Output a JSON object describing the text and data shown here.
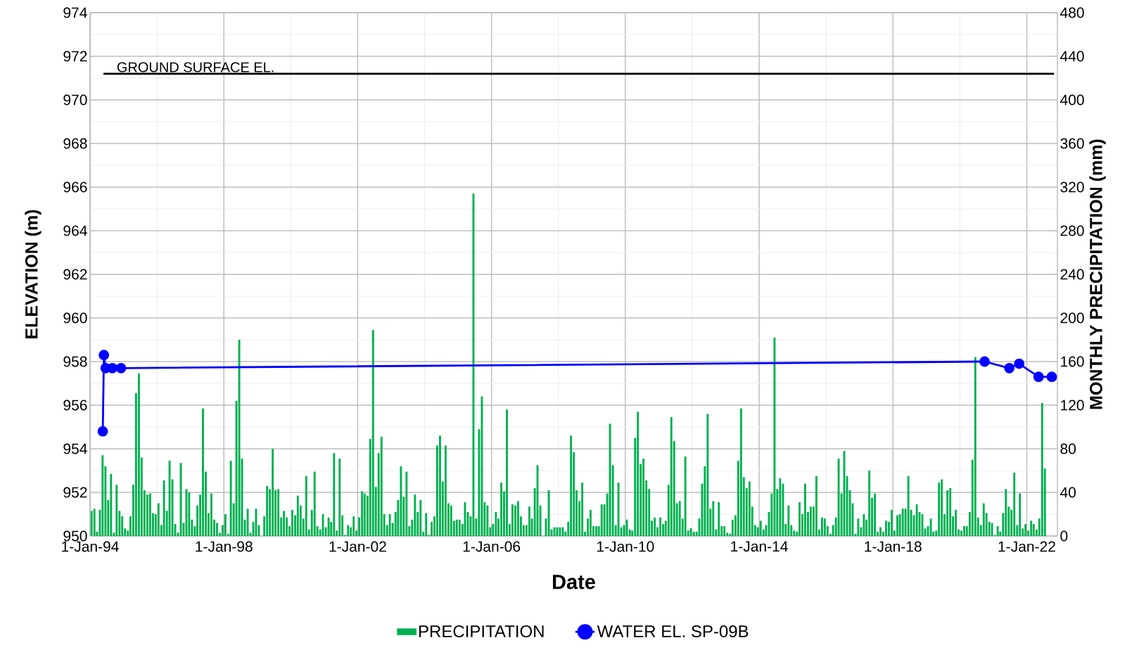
{
  "chart_data": {
    "type": "line",
    "xlabel": "Date",
    "ylabel": "ELEVATION (m)",
    "y2label": "MONTHLY PRECIPITATION (mm)",
    "xlim": [
      "1994-01-01",
      "2022-12-01"
    ],
    "ylim": [
      950,
      974
    ],
    "y2lim": [
      0,
      480
    ],
    "xticks": [
      {
        "value": "1994-01-01",
        "label": "1-Jan-94"
      },
      {
        "value": "1998-01-01",
        "label": "1-Jan-98"
      },
      {
        "value": "2002-01-01",
        "label": "1-Jan-02"
      },
      {
        "value": "2006-01-01",
        "label": "1-Jan-06"
      },
      {
        "value": "2010-01-01",
        "label": "1-Jan-10"
      },
      {
        "value": "2014-01-01",
        "label": "1-Jan-14"
      },
      {
        "value": "2018-01-01",
        "label": "1-Jan-18"
      },
      {
        "value": "2022-01-01",
        "label": "1-Jan-22"
      }
    ],
    "yticks": [
      950,
      952,
      954,
      956,
      958,
      960,
      962,
      964,
      966,
      968,
      970,
      972,
      974
    ],
    "y2ticks": [
      0,
      40,
      80,
      120,
      160,
      200,
      240,
      280,
      320,
      360,
      400,
      440,
      480
    ],
    "grid": true,
    "legend": "bottom",
    "marker": "circle",
    "ref_lines": [
      {
        "axis": "y",
        "value": 971.2,
        "label": "GROUND SURFACE EL.",
        "color": "#000000"
      }
    ],
    "series": [
      {
        "name": "PRECIPITATION",
        "type": "bar",
        "axis": "y2",
        "color": "#00b050",
        "x": [
          "1994-01",
          "1994-02",
          "1994-03",
          "1994-04",
          "1994-05",
          "1994-06",
          "1994-07",
          "1994-08",
          "1994-09",
          "1994-10",
          "1994-11",
          "1994-12",
          "1995-01",
          "1995-02",
          "1995-03",
          "1995-04",
          "1995-05",
          "1995-06",
          "1995-07",
          "1995-08",
          "1995-09",
          "1995-10",
          "1995-11",
          "1995-12",
          "1996-01",
          "1996-02",
          "1996-03",
          "1996-04",
          "1996-05",
          "1996-06",
          "1996-07",
          "1996-08",
          "1996-09",
          "1996-10",
          "1996-11",
          "1996-12",
          "1997-01",
          "1997-02",
          "1997-03",
          "1997-04",
          "1997-05",
          "1997-06",
          "1997-07",
          "1997-08",
          "1997-09",
          "1997-10",
          "1997-11",
          "1997-12",
          "1998-01",
          "1998-02",
          "1998-03",
          "1998-04",
          "1998-05",
          "1998-06",
          "1998-07",
          "1998-08",
          "1998-09",
          "1998-10",
          "1998-11",
          "1998-12",
          "1999-01",
          "1999-02",
          "1999-03",
          "1999-04",
          "1999-05",
          "1999-06",
          "1999-07",
          "1999-08",
          "1999-09",
          "1999-10",
          "1999-11",
          "1999-12",
          "2000-01",
          "2000-02",
          "2000-03",
          "2000-04",
          "2000-05",
          "2000-06",
          "2000-07",
          "2000-08",
          "2000-09",
          "2000-10",
          "2000-11",
          "2000-12",
          "2001-01",
          "2001-02",
          "2001-03",
          "2001-04",
          "2001-05",
          "2001-06",
          "2001-07",
          "2001-08",
          "2001-09",
          "2001-10",
          "2001-11",
          "2001-12",
          "2002-01",
          "2002-02",
          "2002-03",
          "2002-04",
          "2002-05",
          "2002-06",
          "2002-07",
          "2002-08",
          "2002-09",
          "2002-10",
          "2002-11",
          "2002-12",
          "2003-01",
          "2003-02",
          "2003-03",
          "2003-04",
          "2003-05",
          "2003-06",
          "2003-07",
          "2003-08",
          "2003-09",
          "2003-10",
          "2003-11",
          "2003-12",
          "2004-01",
          "2004-02",
          "2004-03",
          "2004-04",
          "2004-05",
          "2004-06",
          "2004-07",
          "2004-08",
          "2004-09",
          "2004-10",
          "2004-11",
          "2004-12",
          "2005-01",
          "2005-02",
          "2005-03",
          "2005-04",
          "2005-05",
          "2005-06",
          "2005-07",
          "2005-08",
          "2005-09",
          "2005-10",
          "2005-11",
          "2005-12",
          "2006-01",
          "2006-02",
          "2006-03",
          "2006-04",
          "2006-05",
          "2006-06",
          "2006-07",
          "2006-08",
          "2006-09",
          "2006-10",
          "2006-11",
          "2006-12",
          "2007-01",
          "2007-02",
          "2007-03",
          "2007-04",
          "2007-05",
          "2007-06",
          "2007-07",
          "2007-08",
          "2007-09",
          "2007-10",
          "2007-11",
          "2007-12",
          "2008-01",
          "2008-02",
          "2008-03",
          "2008-04",
          "2008-05",
          "2008-06",
          "2008-07",
          "2008-08",
          "2008-09",
          "2008-10",
          "2008-11",
          "2008-12",
          "2009-01",
          "2009-02",
          "2009-03",
          "2009-04",
          "2009-05",
          "2009-06",
          "2009-07",
          "2009-08",
          "2009-09",
          "2009-10",
          "2009-11",
          "2009-12",
          "2010-01",
          "2010-02",
          "2010-03",
          "2010-04",
          "2010-05",
          "2010-06",
          "2010-07",
          "2010-08",
          "2010-09",
          "2010-10",
          "2010-11",
          "2010-12",
          "2011-01",
          "2011-02",
          "2011-03",
          "2011-04",
          "2011-05",
          "2011-06",
          "2011-07",
          "2011-08",
          "2011-09",
          "2011-10",
          "2011-11",
          "2011-12",
          "2012-01",
          "2012-02",
          "2012-03",
          "2012-04",
          "2012-05",
          "2012-06",
          "2012-07",
          "2012-08",
          "2012-09",
          "2012-10",
          "2012-11",
          "2012-12",
          "2013-01",
          "2013-02",
          "2013-03",
          "2013-04",
          "2013-05",
          "2013-06",
          "2013-07",
          "2013-08",
          "2013-09",
          "2013-10",
          "2013-11",
          "2013-12",
          "2014-01",
          "2014-02",
          "2014-03",
          "2014-04",
          "2014-05",
          "2014-06",
          "2014-07",
          "2014-08",
          "2014-09",
          "2014-10",
          "2014-11",
          "2014-12",
          "2015-01",
          "2015-02",
          "2015-03",
          "2015-04",
          "2015-05",
          "2015-06",
          "2015-07",
          "2015-08",
          "2015-09",
          "2015-10",
          "2015-11",
          "2015-12",
          "2016-01",
          "2016-02",
          "2016-03",
          "2016-04",
          "2016-05",
          "2016-06",
          "2016-07",
          "2016-08",
          "2016-09",
          "2016-10",
          "2016-11",
          "2016-12",
          "2017-01",
          "2017-02",
          "2017-03",
          "2017-04",
          "2017-05",
          "2017-06",
          "2017-07",
          "2017-08",
          "2017-09",
          "2017-10",
          "2017-11",
          "2017-12",
          "2018-01",
          "2018-02",
          "2018-03",
          "2018-04",
          "2018-05",
          "2018-06",
          "2018-07",
          "2018-08",
          "2018-09",
          "2018-10",
          "2018-11",
          "2018-12",
          "2019-01",
          "2019-02",
          "2019-03",
          "2019-04",
          "2019-05",
          "2019-06",
          "2019-07",
          "2019-08",
          "2019-09",
          "2019-10",
          "2019-11",
          "2019-12",
          "2020-01",
          "2020-02",
          "2020-03",
          "2020-04",
          "2020-05",
          "2020-06",
          "2020-07",
          "2020-08",
          "2020-09",
          "2020-10",
          "2020-11",
          "2020-12",
          "2021-01",
          "2021-02",
          "2021-03",
          "2021-04",
          "2021-05",
          "2021-06",
          "2021-07",
          "2021-08",
          "2021-09",
          "2021-10",
          "2021-11",
          "2021-12",
          "2022-01",
          "2022-02",
          "2022-03",
          "2022-04",
          "2022-05",
          "2022-06",
          "2022-07"
        ],
        "values": [
          23,
          25,
          4,
          24,
          74,
          64,
          33,
          57,
          3,
          47,
          23,
          18,
          7,
          5,
          18,
          47,
          131,
          149,
          72,
          42,
          38,
          39,
          21,
          20,
          30,
          10,
          51,
          23,
          69,
          52,
          11,
          3,
          67,
          12,
          43,
          40,
          15,
          9,
          28,
          38,
          117,
          59,
          21,
          39,
          15,
          12,
          3,
          10,
          20,
          2,
          69,
          30,
          124,
          180,
          71,
          15,
          25,
          3,
          13,
          25,
          10,
          0,
          18,
          46,
          43,
          80,
          42,
          43,
          17,
          23,
          17,
          9,
          24,
          19,
          37,
          28,
          16,
          55,
          6,
          24,
          59,
          9,
          6,
          20,
          8,
          17,
          13,
          76,
          5,
          71,
          19,
          1,
          10,
          8,
          18,
          5,
          17,
          41,
          39,
          37,
          89,
          189,
          45,
          76,
          91,
          20,
          10,
          20,
          12,
          22,
          33,
          64,
          36,
          59,
          9,
          15,
          38,
          22,
          33,
          4,
          21,
          1,
          13,
          18,
          83,
          92,
          50,
          83,
          30,
          28,
          14,
          15,
          15,
          11,
          31,
          22,
          18,
          314,
          16,
          98,
          128,
          31,
          28,
          8,
          11,
          22,
          16,
          49,
          41,
          116,
          11,
          29,
          28,
          32,
          18,
          10,
          10,
          27,
          16,
          44,
          65,
          28,
          0,
          16,
          42,
          6,
          8,
          8,
          8,
          8,
          4,
          13,
          92,
          77,
          42,
          32,
          49,
          4,
          16,
          24,
          9,
          9,
          9,
          29,
          29,
          39,
          103,
          65,
          10,
          49,
          8,
          10,
          15,
          6,
          5,
          90,
          114,
          66,
          71,
          51,
          43,
          14,
          17,
          8,
          17,
          11,
          14,
          47,
          109,
          87,
          30,
          32,
          16,
          73,
          5,
          7,
          4,
          4,
          16,
          48,
          64,
          112,
          25,
          32,
          6,
          31,
          9,
          9,
          3,
          2,
          15,
          19,
          69,
          117,
          54,
          44,
          50,
          27,
          10,
          8,
          14,
          6,
          10,
          22,
          39,
          182,
          43,
          53,
          48,
          11,
          28,
          10,
          5,
          4,
          31,
          20,
          48,
          22,
          27,
          27,
          55,
          6,
          17,
          16,
          9,
          2,
          10,
          17,
          71,
          39,
          78,
          55,
          42,
          30,
          2,
          16,
          8,
          20,
          15,
          60,
          35,
          39,
          4,
          8,
          4,
          14,
          13,
          24,
          5,
          19,
          20,
          25,
          25,
          55,
          24,
          19,
          29,
          22,
          20,
          7,
          9,
          16,
          4,
          5,
          49,
          52,
          20,
          42,
          44,
          18,
          24,
          6,
          5,
          9,
          9,
          22,
          70,
          164,
          17,
          10,
          30,
          21,
          13,
          12,
          1,
          9,
          4,
          21,
          43,
          27,
          24,
          58,
          10,
          39,
          7,
          11,
          5,
          14,
          11,
          6,
          16,
          122,
          62
        ]
      },
      {
        "name": "WATER EL. SP-09B",
        "axis": "y",
        "color": "#0000ff",
        "x": [
          "1994-05-20",
          "1994-06-01",
          "1994-06-20",
          "1994-09-01",
          "1994-12-05",
          "2020-09-28",
          "2021-06-25",
          "2021-10-10",
          "2022-05-10",
          "2022-10-01"
        ],
        "values": [
          954.8,
          958.3,
          957.7,
          957.7,
          957.7,
          958.0,
          957.7,
          957.9,
          957.3,
          957.3
        ]
      }
    ]
  }
}
